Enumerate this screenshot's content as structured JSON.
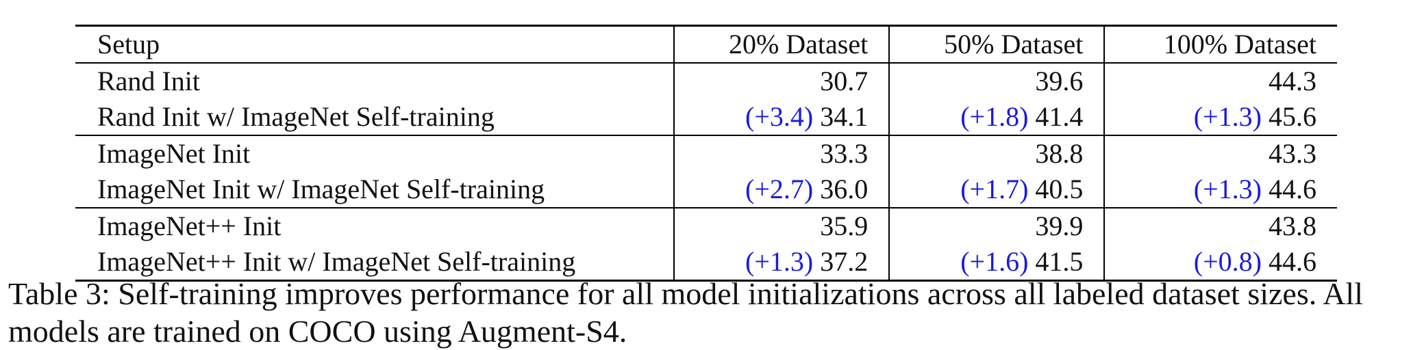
{
  "table": {
    "headers": [
      "Setup",
      "20% Dataset",
      "50% Dataset",
      "100% Dataset"
    ],
    "rows": [
      {
        "setup": "Rand Init",
        "cells": [
          {
            "gain": "",
            "value": "30.7"
          },
          {
            "gain": "",
            "value": "39.6"
          },
          {
            "gain": "",
            "value": "44.3"
          }
        ]
      },
      {
        "setup": "Rand Init w/ ImageNet Self-training",
        "cells": [
          {
            "gain": "(+3.4)",
            "value": "34.1"
          },
          {
            "gain": "(+1.8)",
            "value": "41.4"
          },
          {
            "gain": "(+1.3)",
            "value": "45.6"
          }
        ]
      },
      {
        "setup": "ImageNet Init",
        "cells": [
          {
            "gain": "",
            "value": "33.3"
          },
          {
            "gain": "",
            "value": "38.8"
          },
          {
            "gain": "",
            "value": "43.3"
          }
        ]
      },
      {
        "setup": "ImageNet Init w/ ImageNet Self-training",
        "cells": [
          {
            "gain": "(+2.7)",
            "value": "36.0"
          },
          {
            "gain": "(+1.7)",
            "value": "40.5"
          },
          {
            "gain": "(+1.3)",
            "value": "44.6"
          }
        ]
      },
      {
        "setup": "ImageNet++ Init",
        "cells": [
          {
            "gain": "",
            "value": "35.9"
          },
          {
            "gain": "",
            "value": "39.9"
          },
          {
            "gain": "",
            "value": "43.8"
          }
        ]
      },
      {
        "setup": "ImageNet++ Init w/ ImageNet Self-training",
        "cells": [
          {
            "gain": "(+1.3)",
            "value": "37.2"
          },
          {
            "gain": "(+1.6)",
            "value": "41.5"
          },
          {
            "gain": "(+0.8)",
            "value": "44.6"
          }
        ]
      }
    ]
  },
  "caption": {
    "label": "Table 3:",
    "text": "Self-training improves performance for all model initializations across all labeled dataset sizes. All models are trained on COCO using Augment-S4."
  },
  "colors": {
    "gain": "#1a1adb",
    "text": "#111111"
  }
}
